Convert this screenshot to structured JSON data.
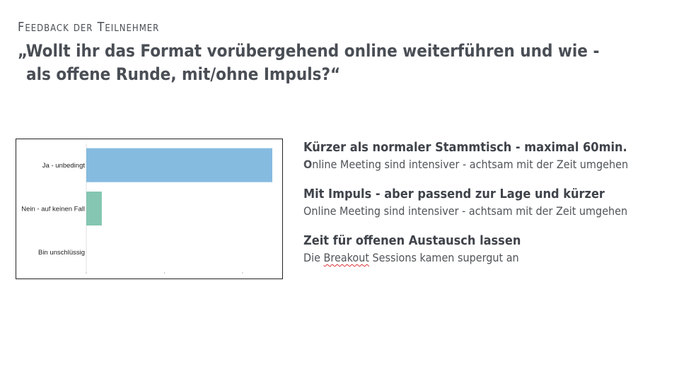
{
  "kicker": "Feedback der Teilnehmer",
  "question": {
    "line1": "„Wollt ihr das Format vorübergehend online weiterführen und wie -",
    "line2": "als offene Runde, mit/ohne Impuls?“"
  },
  "notes": [
    {
      "title": "Kürzer als normaler Stammtisch - maximal 60min.",
      "body_first": "O",
      "body_rest": "nline Meeting sind intensiver - achtsam mit der Zeit umgehen"
    },
    {
      "title": "Mit Impuls - aber passend zur Lage und kürzer",
      "body": "Online Meeting sind intensiver - achtsam mit der Zeit umgehen"
    },
    {
      "title": "Zeit für offenen Austausch lassen",
      "body_pre": "Die ",
      "body_marked": "Breakout",
      "body_post": " Sessions kamen supergut an"
    }
  ],
  "chart_data": {
    "type": "bar",
    "orientation": "horizontal",
    "categories": [
      "Ja - unbedingt",
      "Nein - auf keinen Fall",
      "Bin unschlüssig"
    ],
    "values": [
      24,
      2,
      0
    ],
    "xlim": [
      0,
      24
    ],
    "colors": [
      "#86bbe0",
      "#85c6b2",
      "#9b8fc4"
    ],
    "grid": false,
    "legend": "none"
  }
}
